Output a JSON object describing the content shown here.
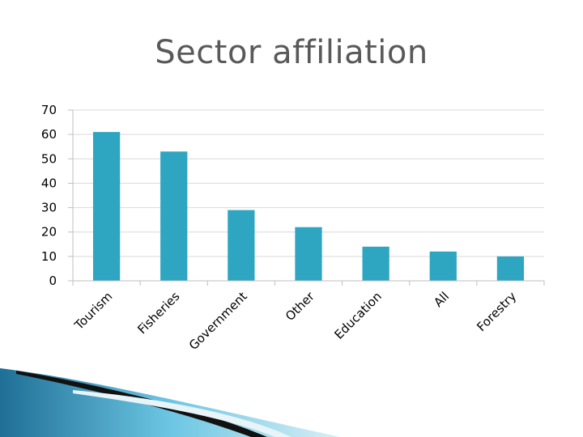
{
  "slide": {
    "title": "Sector affiliation"
  },
  "colors": {
    "bar": "#2ea6c2",
    "grid": "#d9d9d9",
    "axis": "#bfbfbf"
  },
  "chart_data": {
    "type": "bar",
    "title": "",
    "xlabel": "",
    "ylabel": "",
    "categories": [
      "Tourism",
      "Fisheries",
      "Government",
      "Other",
      "Education",
      "All",
      "Forestry"
    ],
    "values": [
      61,
      53,
      29,
      22,
      14,
      12,
      10
    ],
    "ylim": [
      0,
      70
    ],
    "yticks": [
      0,
      10,
      20,
      30,
      40,
      50,
      60,
      70
    ],
    "grid": true,
    "legend": "none"
  }
}
